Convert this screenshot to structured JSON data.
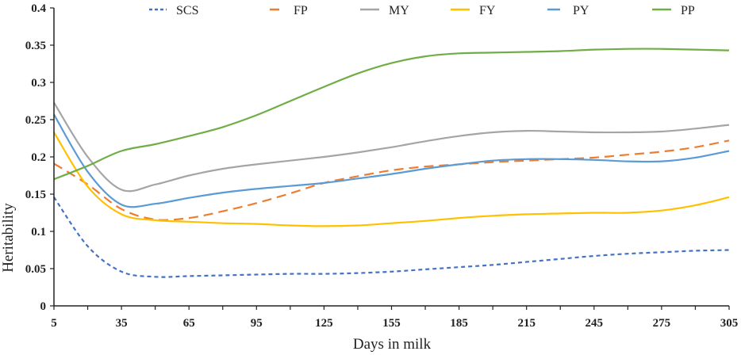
{
  "chart_data": {
    "type": "line",
    "title": "",
    "xlabel": "Days in milk",
    "ylabel": "Heritability",
    "xlim": [
      5,
      305
    ],
    "ylim": [
      0,
      0.4
    ],
    "grid": false,
    "legend_position": "top",
    "x_ticks": [
      5,
      35,
      65,
      95,
      125,
      155,
      185,
      215,
      245,
      275,
      305
    ],
    "x_minor_ticks": [
      20,
      50,
      80,
      110,
      140,
      170,
      200,
      230,
      260,
      290
    ],
    "y_ticks": [
      0,
      0.05,
      0.1,
      0.15,
      0.2,
      0.25,
      0.3,
      0.35,
      0.4
    ],
    "y_tick_labels": [
      "0",
      "0.05",
      "0.1",
      "0.15",
      "0.2",
      "0.25",
      "0.3",
      "0.35",
      "0.4"
    ],
    "x": [
      5,
      20,
      35,
      50,
      65,
      80,
      95,
      110,
      125,
      140,
      155,
      170,
      185,
      200,
      215,
      230,
      245,
      260,
      275,
      290,
      305
    ],
    "series": [
      {
        "name": "SCS",
        "color": "#4472C4",
        "dash": "dotted",
        "values": [
          0.146,
          0.08,
          0.046,
          0.039,
          0.04,
          0.041,
          0.042,
          0.043,
          0.043,
          0.044,
          0.046,
          0.049,
          0.052,
          0.055,
          0.059,
          0.063,
          0.067,
          0.07,
          0.072,
          0.074,
          0.075
        ]
      },
      {
        "name": "FP",
        "color": "#ED7D31",
        "dash": "dashed",
        "values": [
          0.191,
          0.163,
          0.13,
          0.116,
          0.118,
          0.127,
          0.138,
          0.151,
          0.165,
          0.174,
          0.182,
          0.187,
          0.19,
          0.193,
          0.195,
          0.197,
          0.199,
          0.203,
          0.207,
          0.213,
          0.222
        ]
      },
      {
        "name": "MY",
        "color": "#A5A5A5",
        "dash": "solid",
        "values": [
          0.273,
          0.2,
          0.156,
          0.163,
          0.175,
          0.184,
          0.19,
          0.195,
          0.2,
          0.206,
          0.213,
          0.221,
          0.228,
          0.233,
          0.235,
          0.234,
          0.233,
          0.233,
          0.234,
          0.238,
          0.243
        ]
      },
      {
        "name": "FY",
        "color": "#FFC000",
        "dash": "solid",
        "values": [
          0.233,
          0.16,
          0.123,
          0.115,
          0.113,
          0.111,
          0.11,
          0.108,
          0.107,
          0.108,
          0.111,
          0.114,
          0.118,
          0.121,
          0.123,
          0.124,
          0.125,
          0.125,
          0.128,
          0.135,
          0.146
        ]
      },
      {
        "name": "PY",
        "color": "#5B9BD5",
        "dash": "solid",
        "values": [
          0.257,
          0.18,
          0.136,
          0.137,
          0.145,
          0.152,
          0.157,
          0.161,
          0.165,
          0.171,
          0.177,
          0.184,
          0.19,
          0.195,
          0.197,
          0.197,
          0.196,
          0.194,
          0.194,
          0.199,
          0.208
        ]
      },
      {
        "name": "PP",
        "color": "#70AD47",
        "dash": "solid",
        "values": [
          0.17,
          0.188,
          0.208,
          0.217,
          0.228,
          0.24,
          0.256,
          0.275,
          0.294,
          0.312,
          0.326,
          0.335,
          0.339,
          0.34,
          0.341,
          0.342,
          0.344,
          0.345,
          0.345,
          0.344,
          0.343
        ]
      }
    ]
  }
}
